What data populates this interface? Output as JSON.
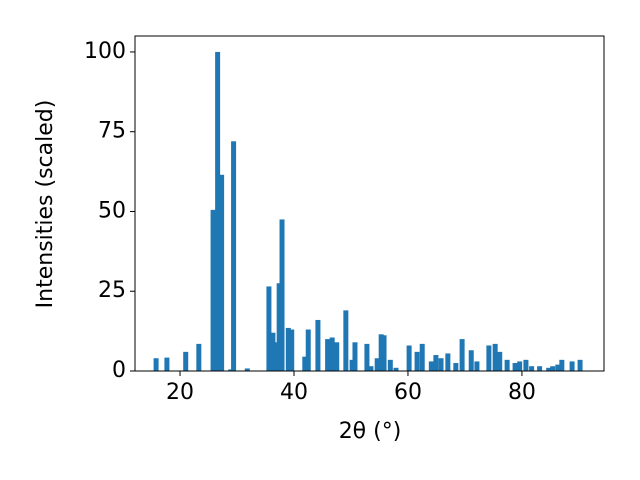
{
  "chart_data": {
    "type": "bar",
    "xlabel": "2θ (°)",
    "ylabel": "Intensities (scaled)",
    "x": [
      15.8,
      17.7,
      21.0,
      23.3,
      25.8,
      26.6,
      27.3,
      28.9,
      29.4,
      31.8,
      35.6,
      36.3,
      37.0,
      37.4,
      37.9,
      39.0,
      39.6,
      41.9,
      42.5,
      44.2,
      45.9,
      46.7,
      47.5,
      49.1,
      50.2,
      50.7,
      52.8,
      53.5,
      54.6,
      55.3,
      55.8,
      56.9,
      57.9,
      60.2,
      61.6,
      62.5,
      64.1,
      64.9,
      65.8,
      67.0,
      68.4,
      69.5,
      71.1,
      72.1,
      74.2,
      75.3,
      76.1,
      77.4,
      78.8,
      79.6,
      80.7,
      81.7,
      83.1,
      84.7,
      85.4,
      86.3,
      87.0,
      88.8,
      90.2
    ],
    "values": [
      4,
      4.2,
      6,
      8.5,
      50.5,
      100,
      61.5,
      0.5,
      72,
      0.8,
      26.5,
      12,
      9,
      27.5,
      47.5,
      13.5,
      13,
      4.5,
      13,
      16,
      10,
      10.5,
      9,
      19,
      3.5,
      9,
      8.5,
      1.5,
      4,
      11.5,
      11.2,
      3.5,
      1,
      8,
      6,
      8.5,
      3,
      5,
      4,
      5.5,
      2.5,
      10,
      6.5,
      3,
      8,
      8.5,
      6,
      3.5,
      2.5,
      3,
      3.5,
      1.5,
      1.5,
      1,
      1.5,
      2,
      3.5,
      3,
      3.5
    ],
    "color": "#1f77b4",
    "xlim": [
      12.1,
      94.4
    ],
    "xticks": [
      20,
      40,
      60,
      80
    ],
    "ylim": [
      0,
      105
    ],
    "yticks": [
      0,
      25,
      50,
      75,
      100
    ]
  }
}
